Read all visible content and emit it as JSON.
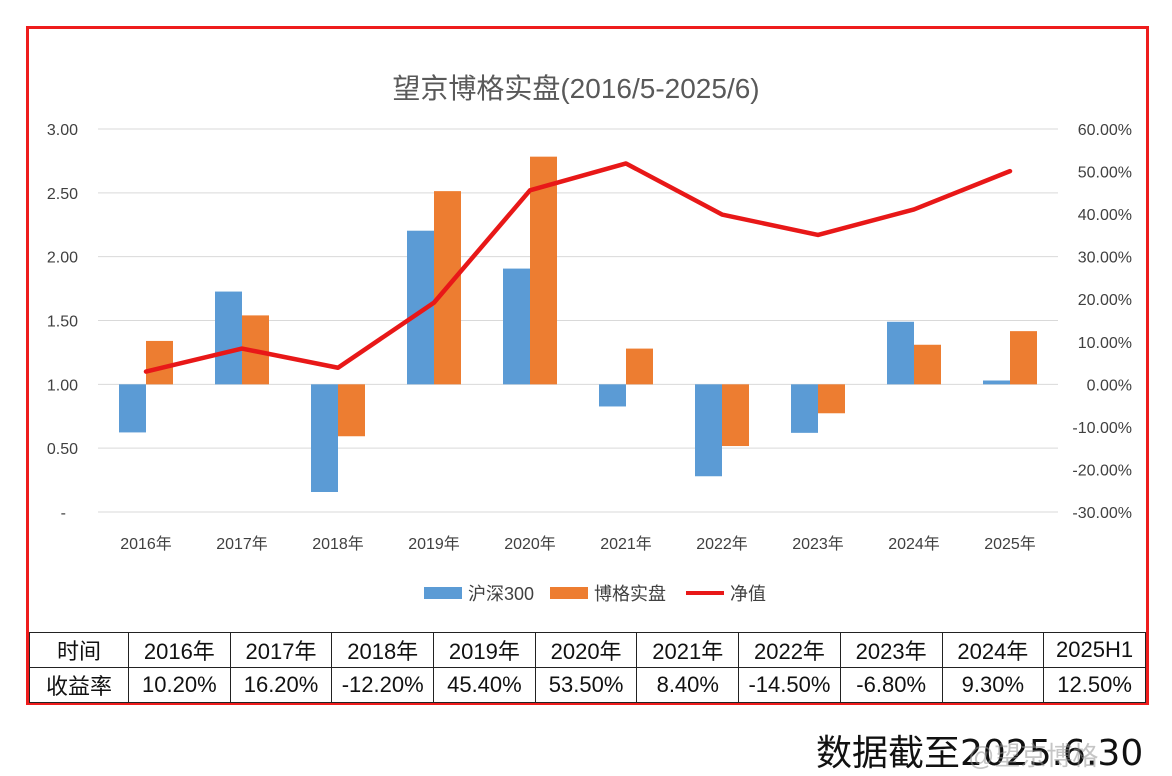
{
  "chart_data": {
    "type": "bar",
    "title": "望京博格实盘(2016/5-2025/6)",
    "categories": [
      "2016年",
      "2017年",
      "2018年",
      "2019年",
      "2020年",
      "2021年",
      "2022年",
      "2023年",
      "2024年",
      "2025年"
    ],
    "series": [
      {
        "name": "沪深300",
        "type": "bar",
        "axis": "right",
        "color": "#5b9bd5",
        "values": [
          -11.3,
          21.8,
          -25.3,
          36.1,
          27.2,
          -5.2,
          -21.6,
          -11.4,
          14.7,
          0.9
        ]
      },
      {
        "name": "博格实盘",
        "type": "bar",
        "axis": "right",
        "color": "#ed7d31",
        "values": [
          10.2,
          16.2,
          -12.2,
          45.4,
          53.5,
          8.4,
          -14.5,
          -6.8,
          9.3,
          12.5
        ]
      },
      {
        "name": "净值",
        "type": "line",
        "axis": "left",
        "color": "#e81818",
        "values": [
          1.1,
          1.28,
          1.13,
          1.64,
          2.52,
          2.73,
          2.33,
          2.17,
          2.37,
          2.67
        ]
      }
    ],
    "left_axis": {
      "min": 0,
      "max": 3,
      "step": 0.5,
      "tick_labels": [
        "-",
        "0.50",
        "1.00",
        "1.50",
        "2.00",
        "2.50",
        "3.00"
      ]
    },
    "right_axis": {
      "min": -30,
      "max": 60,
      "step": 10,
      "tick_labels": [
        "-30.00%",
        "-20.00%",
        "-10.00%",
        "0.00%",
        "10.00%",
        "20.00%",
        "30.00%",
        "40.00%",
        "50.00%",
        "60.00%"
      ]
    },
    "grid": true,
    "legend_position": "bottom"
  },
  "table": {
    "header_label": "时间",
    "row_label": "收益率",
    "years": [
      "2016年",
      "2017年",
      "2018年",
      "2019年",
      "2020年",
      "2021年",
      "2022年",
      "2023年",
      "2024年",
      "2025H1"
    ],
    "returns": [
      "10.20%",
      "16.20%",
      "-12.20%",
      "45.40%",
      "53.50%",
      "8.40%",
      "-14.50%",
      "-6.80%",
      "9.30%",
      "12.50%"
    ]
  },
  "footnote": "数据截至2025.6.30",
  "watermark": "@望京博格",
  "colors": {
    "frame": "#ee1c1c",
    "grid": "#d9d9d9"
  }
}
